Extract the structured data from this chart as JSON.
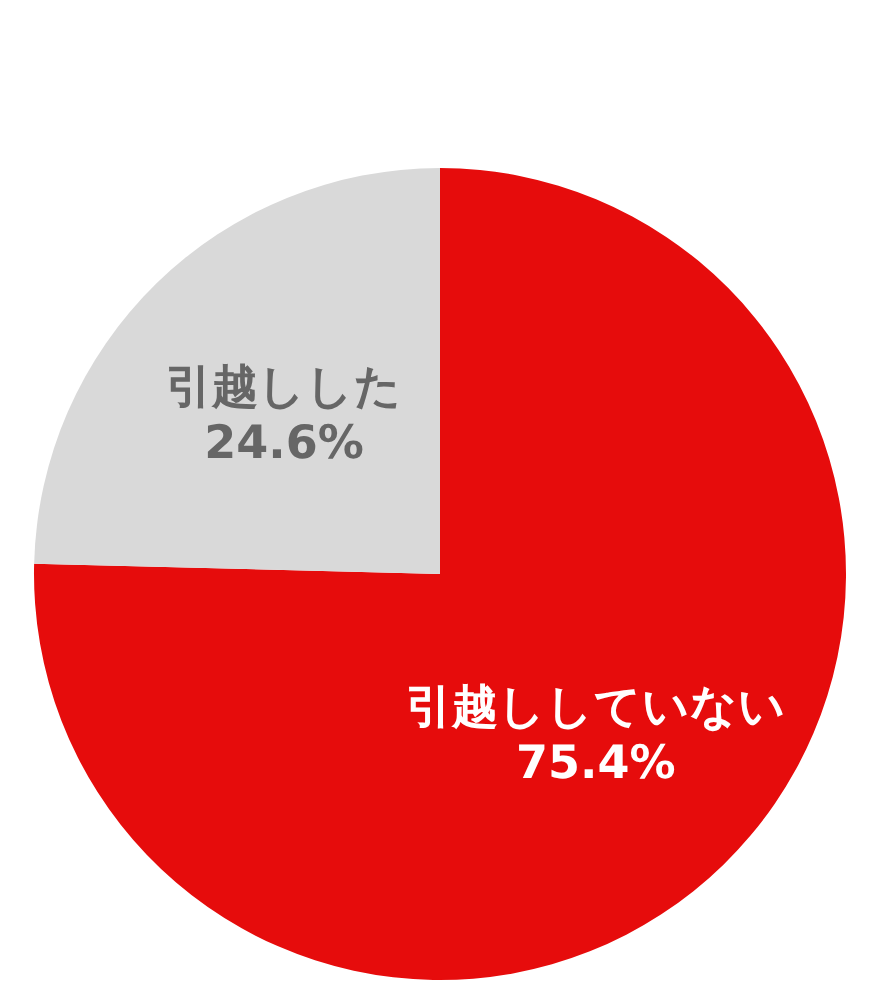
{
  "chart_data": {
    "type": "pie",
    "categories": [
      "引越ししていない",
      "引越しした"
    ],
    "values": [
      75.4,
      24.6
    ],
    "colors": [
      "#e60c0c",
      "#d9d9d9"
    ],
    "value_labels": [
      "75.4%",
      "24.6%"
    ]
  }
}
